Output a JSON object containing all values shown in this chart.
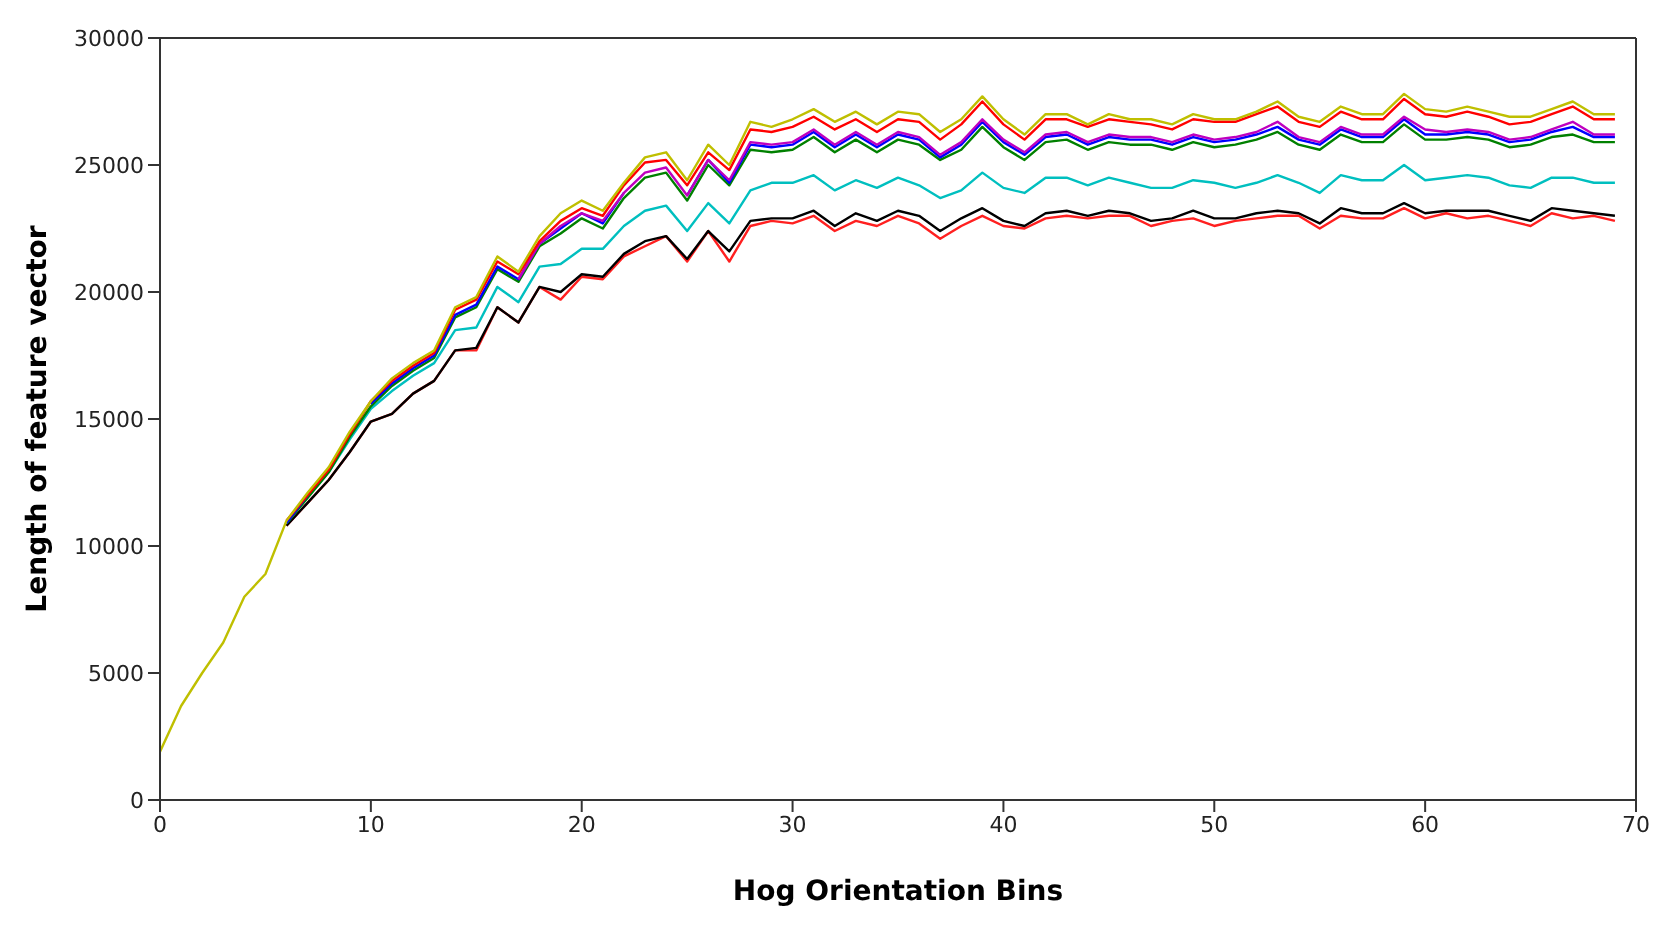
{
  "chart_data": {
    "type": "line",
    "xlabel": "Hog Orientation Bins",
    "ylabel": "Length of feature vector",
    "x": [
      0,
      1,
      2,
      3,
      4,
      5,
      6,
      7,
      8,
      9,
      10,
      11,
      12,
      13,
      14,
      15,
      16,
      17,
      18,
      19,
      20,
      21,
      22,
      23,
      24,
      25,
      26,
      27,
      28,
      29,
      30,
      31,
      32,
      33,
      34,
      35,
      36,
      37,
      38,
      39,
      40,
      41,
      42,
      43,
      44,
      45,
      46,
      47,
      48,
      49,
      50,
      51,
      52,
      53,
      54,
      55,
      56,
      57,
      58,
      59,
      60,
      61,
      62,
      63,
      64,
      65,
      66,
      67,
      68,
      69
    ],
    "xlim": [
      0,
      70
    ],
    "xticks": [
      0,
      10,
      20,
      30,
      40,
      50,
      60,
      70
    ],
    "ylim": [
      0,
      30000
    ],
    "yticks": [
      0,
      5000,
      10000,
      15000,
      20000,
      25000,
      30000
    ],
    "marker": "none",
    "line_style": "solid",
    "series": [
      {
        "color": "#bfbf00",
        "values": [
          1900,
          3700,
          5000,
          6200,
          8000,
          8900,
          11000,
          12100,
          13100,
          14500,
          15700,
          16600,
          17200,
          17700,
          19400,
          19800,
          21400,
          20800,
          22200,
          23100,
          23600,
          23200,
          24300,
          25300,
          25500,
          24400,
          25800,
          25000,
          26700,
          26500,
          26800,
          27200,
          26700,
          27100,
          26600,
          27100,
          27000,
          26300,
          26800,
          27700,
          26800,
          26200,
          27000,
          27000,
          26600,
          27000,
          26800,
          26800,
          26600,
          27000,
          26800,
          26800,
          27100,
          27500,
          26900,
          26700,
          27300,
          27000,
          27000,
          27800,
          27200,
          27100,
          27300,
          27100,
          26900,
          26900,
          27200,
          27500,
          27000,
          27000
        ]
      },
      {
        "color": "#ff0000",
        "values": [
          null,
          null,
          null,
          null,
          null,
          null,
          11000,
          12000,
          13000,
          14400,
          15700,
          16500,
          17100,
          17600,
          19300,
          19700,
          21200,
          20700,
          22000,
          22800,
          23300,
          23000,
          24200,
          25100,
          25200,
          24200,
          25500,
          24800,
          26400,
          26300,
          26500,
          26900,
          26400,
          26800,
          26300,
          26800,
          26700,
          26000,
          26600,
          27500,
          26600,
          26000,
          26800,
          26800,
          26500,
          26800,
          26700,
          26600,
          26400,
          26800,
          26700,
          26700,
          27000,
          27300,
          26700,
          26500,
          27100,
          26800,
          26800,
          27600,
          27000,
          26900,
          27100,
          26900,
          26600,
          26700,
          27000,
          27300,
          26800,
          26800
        ]
      },
      {
        "color": "#bf00bf",
        "values": [
          null,
          null,
          null,
          null,
          null,
          null,
          null,
          null,
          null,
          null,
          null,
          null,
          null,
          null,
          null,
          null,
          null,
          20500,
          21900,
          22600,
          23100,
          22800,
          23900,
          24700,
          24900,
          23800,
          25200,
          24400,
          25900,
          25800,
          25900,
          26400,
          25800,
          26300,
          25800,
          26300,
          26100,
          25400,
          25900,
          26800,
          26000,
          25500,
          26200,
          26300,
          25900,
          26200,
          26100,
          26100,
          25900,
          26200,
          26000,
          26100,
          26300,
          26700,
          26100,
          25900,
          26500,
          26200,
          26200,
          26900,
          26400,
          26300,
          26400,
          26300,
          26000,
          26100,
          26400,
          26700,
          26200,
          26200
        ]
      },
      {
        "color": "#0000ff",
        "values": [
          null,
          null,
          null,
          null,
          null,
          null,
          10900,
          12000,
          null,
          null,
          15600,
          16400,
          17000,
          17500,
          19100,
          19500,
          21000,
          20500,
          21900,
          22500,
          23100,
          22700,
          23900,
          null,
          null,
          23800,
          25200,
          24300,
          25800,
          25700,
          25800,
          26300,
          25700,
          26200,
          25700,
          26200,
          26000,
          25300,
          25800,
          26700,
          25900,
          25400,
          26100,
          26200,
          25800,
          26100,
          26000,
          26000,
          25800,
          26100,
          25900,
          26000,
          26200,
          26500,
          26000,
          25800,
          26400,
          26100,
          26100,
          26800,
          26200,
          26200,
          26300,
          26200,
          25900,
          26000,
          26300,
          26500,
          26100,
          26100
        ]
      },
      {
        "color": "#008000",
        "values": [
          null,
          null,
          null,
          null,
          null,
          null,
          10900,
          11900,
          12900,
          14300,
          15500,
          16300,
          16900,
          17400,
          19000,
          19400,
          20900,
          20400,
          21800,
          22300,
          22900,
          22500,
          23700,
          24500,
          24700,
          23600,
          25000,
          24200,
          25600,
          25500,
          25600,
          26100,
          25500,
          26000,
          25500,
          26000,
          25800,
          25200,
          25600,
          26500,
          25700,
          25200,
          25900,
          26000,
          25600,
          25900,
          25800,
          25800,
          25600,
          25900,
          25700,
          25800,
          26000,
          26300,
          25800,
          25600,
          26200,
          25900,
          25900,
          26600,
          26000,
          26000,
          26100,
          26000,
          25700,
          25800,
          26100,
          26200,
          25900,
          25900
        ]
      },
      {
        "color": "#00bfbf",
        "values": [
          null,
          null,
          null,
          null,
          null,
          null,
          10900,
          11900,
          12900,
          14200,
          15400,
          16100,
          16700,
          17200,
          18500,
          18600,
          20200,
          19600,
          21000,
          21100,
          21700,
          21700,
          22600,
          23200,
          23400,
          22400,
          23500,
          22700,
          24000,
          24300,
          24300,
          24600,
          24000,
          24400,
          24100,
          24500,
          24200,
          23700,
          24000,
          24700,
          24100,
          23900,
          24500,
          24500,
          24200,
          24500,
          24300,
          24100,
          24100,
          24400,
          24300,
          24100,
          24300,
          24600,
          24300,
          23900,
          24600,
          24400,
          24400,
          25000,
          24400,
          24500,
          24600,
          24500,
          24200,
          24100,
          24500,
          24500,
          24300,
          24300
        ]
      },
      {
        "color": "#000000",
        "values": [
          null,
          null,
          null,
          null,
          null,
          null,
          10800,
          11700,
          12600,
          13700,
          14900,
          15200,
          16000,
          16500,
          17700,
          17800,
          19400,
          18800,
          20200,
          20000,
          20700,
          20600,
          21500,
          22000,
          22200,
          21300,
          22400,
          21600,
          22800,
          22900,
          22900,
          23200,
          22600,
          23100,
          22800,
          23200,
          23000,
          22400,
          22900,
          23300,
          22800,
          22600,
          23100,
          23200,
          23000,
          23200,
          23100,
          22800,
          22900,
          23200,
          22900,
          22900,
          23100,
          23200,
          23100,
          22700,
          23300,
          23100,
          23100,
          23500,
          23100,
          23200,
          23200,
          23200,
          23000,
          22800,
          23300,
          23200,
          23100,
          23000
        ]
      },
      {
        "color": "#ff2020",
        "values": [
          null,
          null,
          null,
          null,
          null,
          null,
          10800,
          11700,
          12600,
          13700,
          14900,
          15200,
          16000,
          16500,
          17700,
          17700,
          19400,
          18800,
          20200,
          19700,
          20600,
          20500,
          21400,
          21800,
          22200,
          21200,
          22400,
          21200,
          22600,
          22800,
          22700,
          23000,
          22400,
          22800,
          22600,
          23000,
          22700,
          22100,
          22600,
          23000,
          22600,
          22500,
          22900,
          23000,
          22900,
          23000,
          23000,
          22600,
          22800,
          22900,
          22600,
          22800,
          22900,
          23000,
          23000,
          22500,
          23000,
          22900,
          22900,
          23300,
          22900,
          23100,
          22900,
          23000,
          22800,
          22600,
          23100,
          22900,
          23000,
          22800
        ]
      }
    ]
  }
}
